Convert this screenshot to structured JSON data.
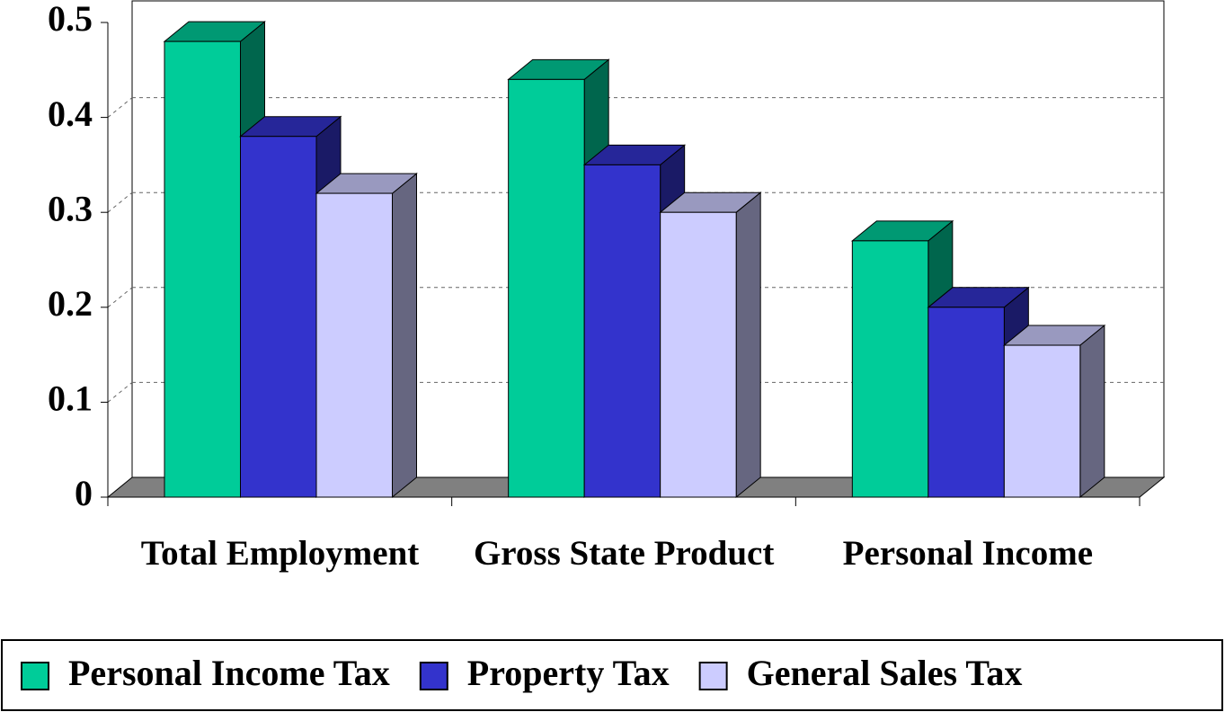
{
  "chart_data": {
    "type": "bar3d",
    "categories": [
      "Total Employment",
      "Gross State Product",
      "Personal Income"
    ],
    "series": [
      {
        "name": "Personal Income Tax",
        "color": "#00cc99",
        "values": [
          0.48,
          0.44,
          0.27
        ]
      },
      {
        "name": "Property Tax",
        "color": "#3333cc",
        "values": [
          0.38,
          0.35,
          0.2
        ]
      },
      {
        "name": "General Sales Tax",
        "color": "#ccccff",
        "values": [
          0.32,
          0.3,
          0.16
        ]
      }
    ],
    "ylim": [
      0,
      0.5
    ],
    "yticks": [
      0,
      0.1,
      0.2,
      0.3,
      0.4,
      0.5
    ],
    "grid": true,
    "legend": "bottom"
  }
}
